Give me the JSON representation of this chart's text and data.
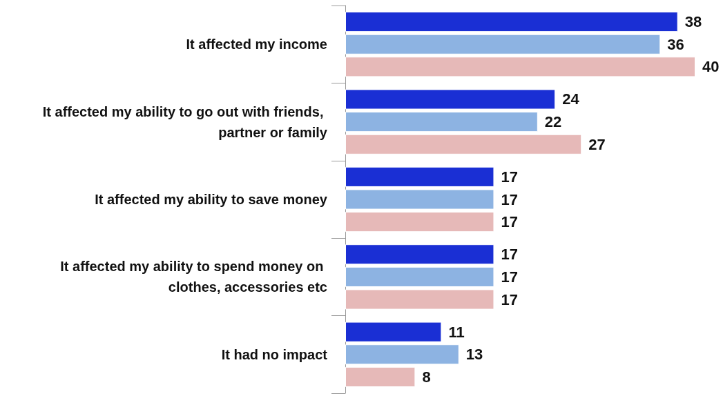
{
  "chart_data": {
    "type": "bar",
    "orientation": "horizontal",
    "data_labels": true,
    "categories": [
      "It affected my income",
      "It affected my ability to go out with friends, partner or family",
      "It affected my ability to save money",
      "It affected my ability to spend money on clothes, accessories etc",
      "It had no impact"
    ],
    "series": [
      {
        "color": "#1a2fd4",
        "values": [
          38,
          24,
          17,
          17,
          11
        ]
      },
      {
        "color": "#8db3e2",
        "values": [
          36,
          22,
          17,
          17,
          13
        ]
      },
      {
        "color": "#e6b9b8",
        "values": [
          40,
          27,
          17,
          17,
          8
        ]
      }
    ]
  }
}
